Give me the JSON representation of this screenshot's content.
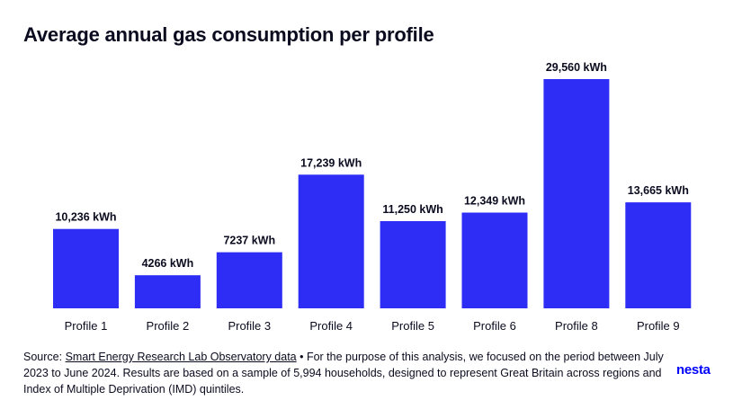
{
  "title": "Average annual gas consumption per profile",
  "chart_data": {
    "type": "bar",
    "title": "Average annual gas consumption per profile",
    "categories": [
      "Profile 1",
      "Profile 2",
      "Profile 3",
      "Profile 4",
      "Profile 5",
      "Profile 6",
      "Profile 8",
      "Profile 9"
    ],
    "values": [
      10236,
      4266,
      7237,
      17239,
      11250,
      12349,
      29560,
      13665
    ],
    "value_labels": [
      "10,236 kWh",
      "4266 kWh",
      "7237 kWh",
      "17,239 kWh",
      "11,250 kWh",
      "12,349 kWh",
      "29,560 kWh",
      "13,665 kWh"
    ],
    "xlabel": "",
    "ylabel": "",
    "ylim": [
      0,
      29560
    ],
    "grid": false,
    "bar_color": "#2d2df5"
  },
  "source": {
    "prefix": "Source: ",
    "link_text": "Smart Energy Research Lab Observatory data",
    "text": " • For the purpose of this analysis, we focused on the period between July 2023 to June 2024. Results are based on a sample of 5,994 households, designed to represent Great Britain across regions and Index of Multiple Deprivation (IMD) quintiles."
  },
  "logo": "nesta",
  "colors": {
    "bar": "#2d2df5",
    "logo": "#0000ff",
    "text": "#0b0b1f"
  }
}
